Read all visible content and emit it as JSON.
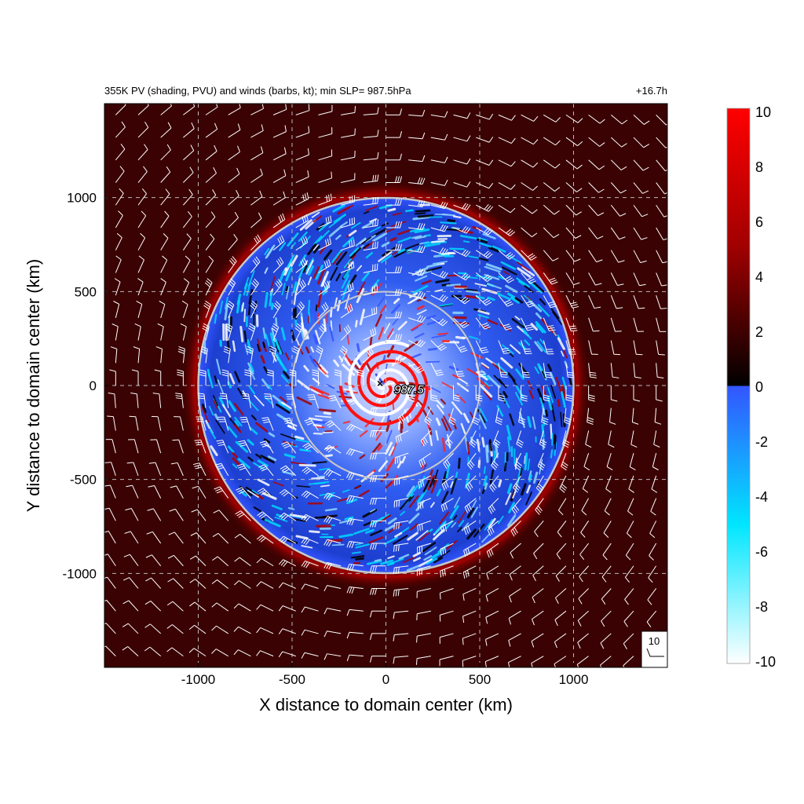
{
  "chart_data": {
    "type": "heatmap",
    "title": "355K PV (shading, PVU) and winds (barbs, kt); min SLP=  987.5hPa",
    "time_label": "+16.7h",
    "xlabel": "X distance to domain center (km)",
    "ylabel": "Y distance to domain center (km)",
    "xlim": [
      -1500,
      1500
    ],
    "ylim": [
      -1500,
      1500
    ],
    "x_ticks": [
      -1000,
      -500,
      0,
      500,
      1000
    ],
    "y_ticks": [
      -1000,
      -500,
      0,
      500,
      1000
    ],
    "x_tick_labels": [
      "-1000",
      "-500",
      "0",
      "500",
      "1000"
    ],
    "y_tick_labels": [
      "-1000",
      "-500",
      "0",
      "500",
      "1000"
    ],
    "grid": true,
    "colorbar": {
      "min": -10,
      "max": 10,
      "ticks": [
        10,
        8,
        6,
        4,
        2,
        0,
        -2,
        -4,
        -6,
        -8,
        -10
      ],
      "tick_labels": [
        "10",
        "8",
        "6",
        "4",
        "2",
        "0",
        "-2",
        "-4",
        "-6",
        "-8",
        "-10"
      ],
      "colors": {
        "max": "#ff0000",
        "positive_mid": "#8b0000",
        "zero_pos": "#000000",
        "zero_neg": "#3355ff",
        "neg_mid": "#00ffff",
        "min": "#ffffff"
      }
    },
    "circles_radius_km": [
      500,
      1000
    ],
    "min_slp_label": "987.5",
    "min_slp_location": [
      0,
      0
    ],
    "barb_legend_label": "10",
    "background_pv": 3,
    "ring_pv": 6
  }
}
